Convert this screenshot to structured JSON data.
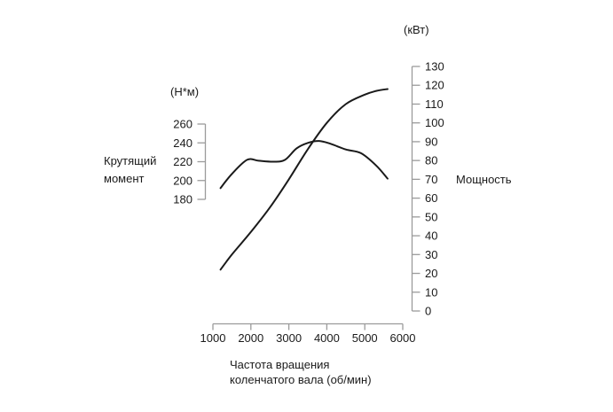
{
  "chart_data": {
    "type": "line",
    "x_axis": {
      "label_line1": "Частота вращения",
      "label_line2": "коленчатого вала (об/мин)",
      "ticks": [
        1000,
        2000,
        3000,
        4000,
        5000,
        6000
      ],
      "range": [
        1000,
        6000
      ]
    },
    "left_axis": {
      "unit": "(Н*м)",
      "title_line1": "Крутящий",
      "title_line2": "момент",
      "ticks": [
        260,
        240,
        220,
        200,
        180
      ],
      "range": [
        180,
        260
      ]
    },
    "right_axis": {
      "unit": "(кВт)",
      "title": "Мощность",
      "ticks": [
        130,
        120,
        110,
        100,
        90,
        80,
        70,
        60,
        50,
        40,
        30,
        20,
        10,
        0
      ],
      "range": [
        0,
        130
      ]
    },
    "series": [
      {
        "name": "Крутящий момент",
        "axis": "left",
        "unit": "Н*м",
        "points": [
          [
            1200,
            192
          ],
          [
            1500,
            207
          ],
          [
            1900,
            222
          ],
          [
            2200,
            221
          ],
          [
            2600,
            220
          ],
          [
            2900,
            222
          ],
          [
            3200,
            234
          ],
          [
            3500,
            240
          ],
          [
            3800,
            242
          ],
          [
            4100,
            239
          ],
          [
            4500,
            233
          ],
          [
            4900,
            229
          ],
          [
            5300,
            216
          ],
          [
            5600,
            202
          ]
        ]
      },
      {
        "name": "Мощность",
        "axis": "right",
        "unit": "кВт",
        "points": [
          [
            1200,
            22
          ],
          [
            1500,
            30
          ],
          [
            2000,
            42
          ],
          [
            2500,
            55
          ],
          [
            3000,
            70
          ],
          [
            3500,
            86
          ],
          [
            4000,
            100
          ],
          [
            4500,
            110
          ],
          [
            5000,
            115
          ],
          [
            5300,
            117
          ],
          [
            5600,
            118
          ]
        ]
      }
    ],
    "style": {
      "curve_color": "#1a1a1a",
      "axis_color": "#9b9b9b",
      "text_color": "#1a1a1a",
      "background": "#ffffff",
      "grid": "off",
      "legend": "axis-side-labels"
    }
  }
}
